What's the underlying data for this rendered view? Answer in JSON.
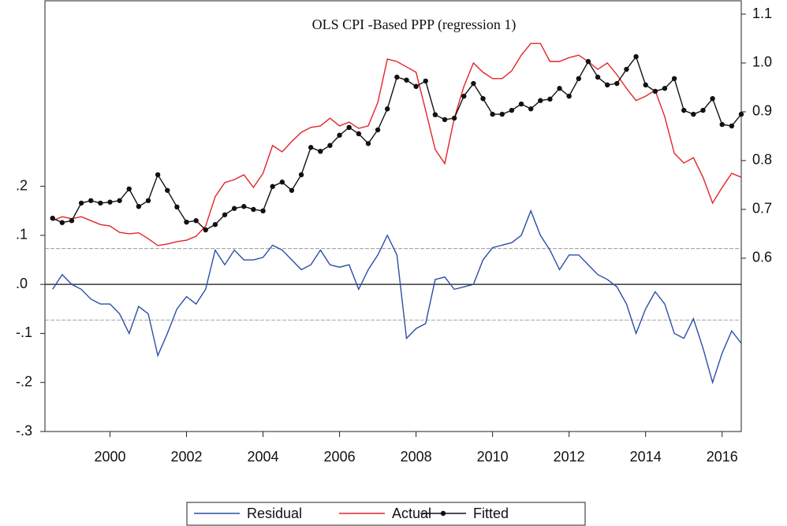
{
  "chart_data": {
    "type": "line",
    "title": "OLS CPI -Based PPP (regression 1)",
    "x": [
      1998.5,
      1998.75,
      1999,
      1999.25,
      1999.5,
      1999.75,
      2000,
      2000.25,
      2000.5,
      2000.75,
      2001,
      2001.25,
      2001.5,
      2001.75,
      2002,
      2002.25,
      2002.5,
      2002.75,
      2003,
      2003.25,
      2003.5,
      2003.75,
      2004,
      2004.25,
      2004.5,
      2004.75,
      2005,
      2005.25,
      2005.5,
      2005.75,
      2006,
      2006.25,
      2006.5,
      2006.75,
      2007,
      2007.25,
      2007.5,
      2007.75,
      2008,
      2008.25,
      2008.5,
      2008.75,
      2009,
      2009.25,
      2009.5,
      2009.75,
      2010,
      2010.25,
      2010.5,
      2010.75,
      2011,
      2011.25,
      2011.5,
      2011.75,
      2012,
      2012.25,
      2012.5,
      2012.75,
      2013,
      2013.25,
      2013.5,
      2013.75,
      2014,
      2014.25,
      2014.5,
      2014.75,
      2015,
      2015.25,
      2015.5,
      2015.75,
      2016,
      2016.25,
      2016.5
    ],
    "series": [
      {
        "name": "Residual",
        "color": "#2b4ea6",
        "axis": "y",
        "markers": false,
        "values": [
          -0.01,
          0.02,
          0.0,
          -0.01,
          -0.03,
          -0.04,
          -0.04,
          -0.06,
          -0.1,
          -0.045,
          -0.06,
          -0.145,
          -0.1,
          -0.05,
          -0.025,
          -0.04,
          -0.01,
          0.07,
          0.04,
          0.07,
          0.05,
          0.05,
          0.055,
          0.08,
          0.07,
          0.05,
          0.03,
          0.04,
          0.07,
          0.04,
          0.035,
          0.04,
          -0.01,
          0.03,
          0.06,
          0.1,
          0.06,
          -0.11,
          -0.09,
          -0.08,
          0.01,
          0.015,
          -0.01,
          -0.005,
          0.0,
          0.05,
          0.075,
          0.08,
          0.085,
          0.1,
          0.15,
          0.1,
          0.07,
          0.03,
          0.06,
          0.06,
          0.04,
          0.02,
          0.01,
          -0.005,
          -0.04,
          -0.1,
          -0.05,
          -0.015,
          -0.04,
          -0.1,
          -0.11,
          -0.07,
          -0.13,
          -0.2,
          -0.14,
          -0.095,
          -0.12
        ]
      },
      {
        "name": "Actual",
        "color": "#e3242b",
        "axis": "y2",
        "markers": false,
        "values": [
          0.677,
          0.685,
          0.681,
          0.685,
          0.677,
          0.669,
          0.666,
          0.653,
          0.65,
          0.652,
          0.64,
          0.626,
          0.629,
          0.634,
          0.637,
          0.645,
          0.666,
          0.726,
          0.755,
          0.761,
          0.771,
          0.745,
          0.774,
          0.831,
          0.818,
          0.839,
          0.858,
          0.868,
          0.871,
          0.887,
          0.871,
          0.879,
          0.866,
          0.871,
          0.919,
          1.008,
          1.003,
          0.992,
          0.981,
          0.903,
          0.823,
          0.794,
          0.887,
          0.952,
          1.0,
          0.981,
          0.968,
          0.968,
          0.984,
          1.016,
          1.04,
          1.04,
          1.003,
          1.003,
          1.011,
          1.016,
          1.003,
          0.987,
          1.0,
          0.976,
          0.948,
          0.923,
          0.932,
          0.944,
          0.89,
          0.815,
          0.795,
          0.806,
          0.766,
          0.713,
          0.745,
          0.774,
          0.766
        ]
      },
      {
        "name": "Fitted",
        "color": "#111111",
        "axis": "y2",
        "markers": true,
        "values": [
          0.682,
          0.673,
          0.677,
          0.713,
          0.718,
          0.713,
          0.715,
          0.718,
          0.742,
          0.706,
          0.718,
          0.771,
          0.739,
          0.705,
          0.674,
          0.677,
          0.658,
          0.669,
          0.689,
          0.702,
          0.706,
          0.7,
          0.697,
          0.747,
          0.756,
          0.739,
          0.771,
          0.827,
          0.819,
          0.831,
          0.852,
          0.868,
          0.855,
          0.835,
          0.863,
          0.906,
          0.971,
          0.965,
          0.952,
          0.963,
          0.894,
          0.884,
          0.887,
          0.932,
          0.958,
          0.927,
          0.895,
          0.895,
          0.903,
          0.916,
          0.906,
          0.923,
          0.926,
          0.948,
          0.932,
          0.968,
          1.003,
          0.971,
          0.955,
          0.958,
          0.987,
          1.013,
          0.955,
          0.942,
          0.948,
          0.968,
          0.903,
          0.895,
          0.903,
          0.927,
          0.874,
          0.871,
          0.895
        ]
      }
    ],
    "xlim": [
      1998.3,
      2016.5
    ],
    "xticks": [
      2000,
      2002,
      2004,
      2006,
      2008,
      2010,
      2012,
      2014,
      2016
    ],
    "ylim": [
      -0.3,
      0.551
    ],
    "yticks": [
      {
        "value": 0.2,
        "label": ".2"
      },
      {
        "value": 0.1,
        "label": ".1"
      },
      {
        "value": 0,
        "label": ".0"
      },
      {
        "value": -0.1,
        "label": "-.1"
      },
      {
        "value": -0.2,
        "label": "-.2"
      },
      {
        "value": -0.3,
        "label": "-.3"
      }
    ],
    "y2lim": [
      0.245,
      1.1
    ],
    "y2ticks": [
      1.1,
      {
        "value": 1.0,
        "label": "1.0"
      },
      0.9,
      0.8,
      0.7,
      0.6
    ],
    "hlines": [
      {
        "y": 0,
        "dashed": false
      },
      {
        "y": 0.073,
        "dashed": true
      },
      {
        "y": -0.073,
        "dashed": true
      }
    ],
    "legend": "bottom"
  }
}
